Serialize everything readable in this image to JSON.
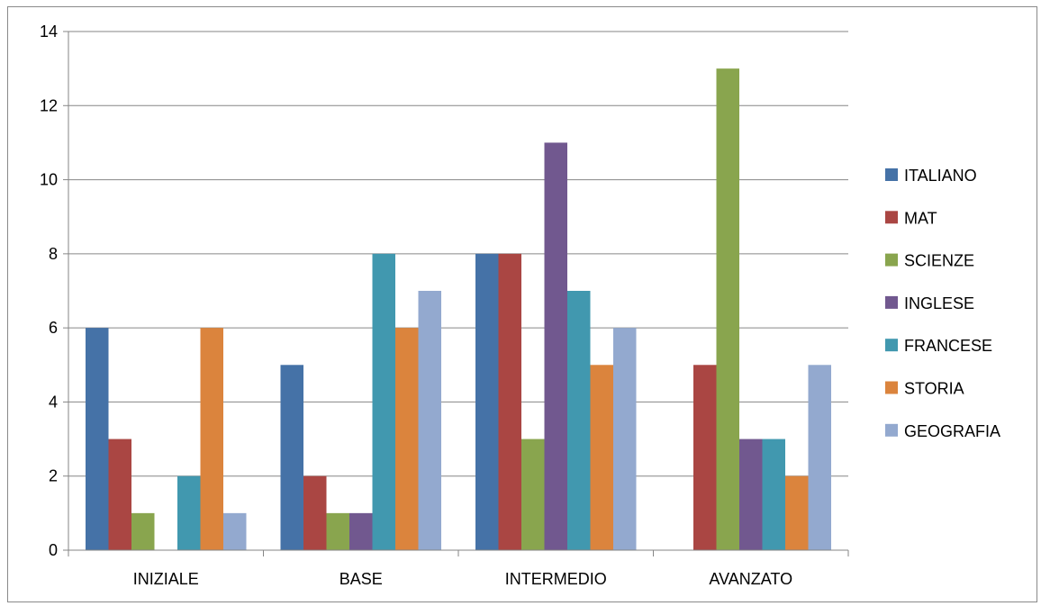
{
  "chart_data": {
    "type": "bar",
    "title": "",
    "xlabel": "",
    "ylabel": "",
    "categories": [
      "INIZIALE",
      "BASE",
      "INTERMEDIO",
      "AVANZATO"
    ],
    "ylim": [
      0,
      14
    ],
    "yticks": [
      0,
      2,
      4,
      6,
      8,
      10,
      12,
      14
    ],
    "grid": true,
    "legend_position": "right",
    "series": [
      {
        "name": "ITALIANO",
        "color": "#4572A7",
        "values": [
          6,
          5,
          8,
          0
        ]
      },
      {
        "name": "MAT",
        "color": "#AA4643",
        "values": [
          3,
          2,
          8,
          5
        ]
      },
      {
        "name": "SCIENZE",
        "color": "#89A54E",
        "values": [
          1,
          1,
          3,
          13
        ]
      },
      {
        "name": "INGLESE",
        "color": "#71588F",
        "values": [
          0,
          1,
          11,
          3
        ]
      },
      {
        "name": "FRANCESE",
        "color": "#4198AF",
        "values": [
          2,
          8,
          7,
          3
        ]
      },
      {
        "name": "STORIA",
        "color": "#DB843D",
        "values": [
          6,
          6,
          5,
          2
        ]
      },
      {
        "name": "GEOGRAFIA",
        "color": "#93A9CF",
        "values": [
          1,
          7,
          6,
          5
        ]
      }
    ]
  }
}
